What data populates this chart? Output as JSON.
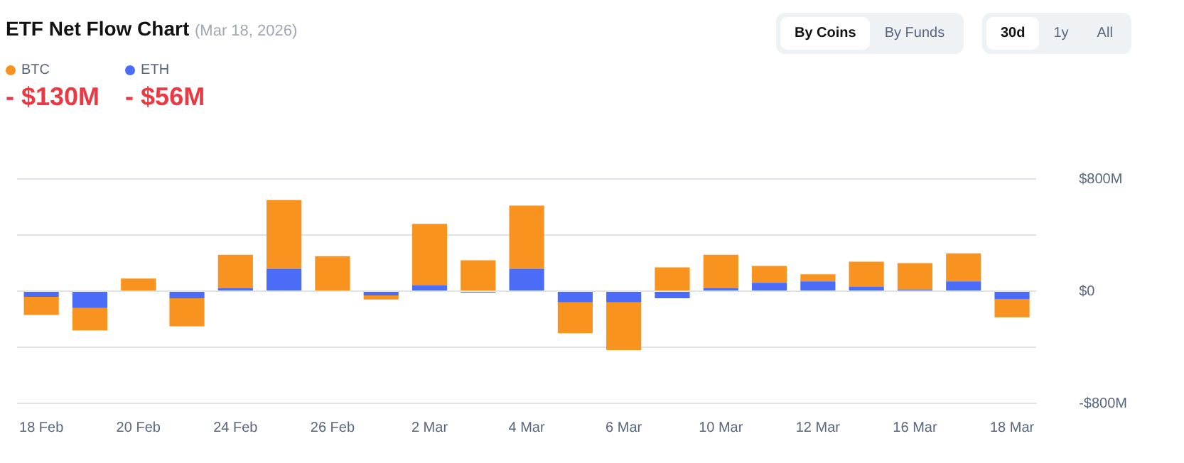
{
  "chart_data": {
    "type": "bar",
    "title": "ETF Net Flow Chart",
    "subtitle": "(Mar 18, 2026)",
    "categories": [
      "18 Feb",
      null,
      "20 Feb",
      null,
      "24 Feb",
      null,
      "26 Feb",
      null,
      "2 Mar",
      null,
      "4 Mar",
      null,
      "6 Mar",
      null,
      "10 Mar",
      null,
      "12 Mar",
      null,
      "16 Mar",
      null,
      "18 Mar"
    ],
    "series": [
      {
        "name": "ETH",
        "color": "#4a6cf7",
        "values": [
          -40,
          -120,
          0,
          -50,
          20,
          160,
          0,
          -30,
          40,
          -10,
          160,
          -80,
          -80,
          -50,
          20,
          60,
          70,
          30,
          10,
          70,
          -56
        ]
      },
      {
        "name": "BTC",
        "color": "#f7931e",
        "values": [
          -130,
          -160,
          90,
          -200,
          240,
          490,
          250,
          -30,
          440,
          220,
          450,
          -220,
          -340,
          170,
          240,
          120,
          50,
          180,
          190,
          200,
          -130
        ]
      }
    ],
    "stacked": true,
    "ylim": [
      -800,
      800
    ],
    "yticks": [
      {
        "value": -800,
        "label": "-$800M"
      },
      {
        "value": -400,
        "label": null
      },
      {
        "value": 0,
        "label": "$0"
      },
      {
        "value": 400,
        "label": null
      },
      {
        "value": 800,
        "label": "$800M"
      }
    ],
    "grid": "y",
    "legend": "top left",
    "annotations": [
      "By Coins",
      "By Funds",
      "30d",
      "1y",
      "All",
      "- $130M",
      "- $56M"
    ]
  }
}
